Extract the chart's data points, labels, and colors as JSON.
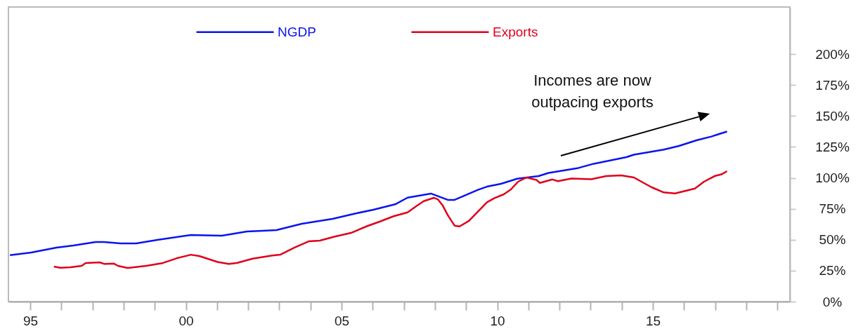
{
  "chart_data": {
    "type": "line",
    "x": [
      1994.35,
      1995.03,
      1995.84,
      1996.38,
      1997.1,
      1997.37,
      1997.91,
      1998.4,
      1999.08,
      2000.16,
      2001.15,
      2001.96,
      2002.46,
      2002.91,
      2003.72,
      2004.71,
      2005.48,
      2006.02,
      2006.74,
      2007.12,
      2007.87,
      2008.41,
      2008.63,
      2009.38,
      2009.67,
      2010.12,
      2010.64,
      2011.33,
      2011.65,
      2012.61,
      2013.1,
      2014.15,
      2014.39,
      2015.35,
      2015.84,
      2016.4,
      2016.88,
      2017.38
    ],
    "series": [
      {
        "name": "NGDP",
        "color": "#0a14f0",
        "values": [
          37.6,
          39.7,
          43.6,
          45.3,
          48.2,
          48.2,
          47,
          47,
          49.9,
          53.8,
          53.3,
          56.7,
          57.2,
          57.8,
          62.9,
          66.9,
          71.4,
          74.2,
          78.8,
          84,
          87.3,
          82.2,
          82.2,
          90.3,
          92.9,
          95.2,
          99.3,
          101.4,
          104,
          108,
          111.4,
          116.7,
          118.7,
          122.8,
          125.8,
          130.3,
          133.4,
          137.4
        ]
      },
      {
        "name": "Exports",
        "color": "#e0001b",
        "x": [
          1995.76,
          1995.97,
          1996.29,
          1996.65,
          1996.78,
          1997.23,
          1997.39,
          1997.68,
          1997.82,
          1998.13,
          1998.72,
          1999.26,
          1999.71,
          2000.16,
          2000.43,
          2001.02,
          2001.38,
          2001.65,
          2002.14,
          2002.77,
          2003.04,
          2003.49,
          2003.94,
          2004.3,
          2004.76,
          2005.3,
          2005.84,
          2006.22,
          2006.67,
          2007.12,
          2007.42,
          2007.64,
          2007.96,
          2008.09,
          2008.25,
          2008.41,
          2008.63,
          2008.79,
          2009.09,
          2009.38,
          2009.67,
          2009.9,
          2010.21,
          2010.44,
          2010.67,
          2010.94,
          2011.26,
          2011.37,
          2011.77,
          2011.95,
          2012.38,
          2013.02,
          2013.5,
          2013.98,
          2014.39,
          2014.63,
          2014.95,
          2015.35,
          2015.71,
          2016.35,
          2016.64,
          2017.0,
          2017.2,
          2017.38
        ],
        "values": [
          28.3,
          27.4,
          27.8,
          28.9,
          31.2,
          31.7,
          30.4,
          30.8,
          28.9,
          27.2,
          28.9,
          31.2,
          35.1,
          37.9,
          36.8,
          32,
          30.4,
          31.3,
          34.7,
          37.2,
          38,
          43.7,
          48.7,
          49.3,
          52.4,
          55.5,
          61.2,
          64.6,
          69,
          72.1,
          77.5,
          81.2,
          83.9,
          82.7,
          77.6,
          69.9,
          61.4,
          60.8,
          65.2,
          72.7,
          80.3,
          83.5,
          86.7,
          90.7,
          96.9,
          100.3,
          98.3,
          95.9,
          98.7,
          97.3,
          99.5,
          98.9,
          101.4,
          102,
          100.3,
          96.9,
          92.5,
          88.2,
          87.4,
          91.4,
          96.9,
          101.6,
          102.8,
          105.4
        ]
      }
    ],
    "xlim": [
      1994.3,
      2019.4
    ],
    "xticks": [
      {
        "value": 1995,
        "label": "95"
      },
      {
        "value": 1996,
        "label": null
      },
      {
        "value": 1997,
        "label": null
      },
      {
        "value": 1998,
        "label": null
      },
      {
        "value": 1999,
        "label": null
      },
      {
        "value": 2000,
        "label": "00"
      },
      {
        "value": 2001,
        "label": null
      },
      {
        "value": 2002,
        "label": null
      },
      {
        "value": 2003,
        "label": null
      },
      {
        "value": 2004,
        "label": null
      },
      {
        "value": 2005,
        "label": "05"
      },
      {
        "value": 2006,
        "label": null
      },
      {
        "value": 2007,
        "label": null
      },
      {
        "value": 2008,
        "label": null
      },
      {
        "value": 2009,
        "label": null
      },
      {
        "value": 2010,
        "label": "10"
      },
      {
        "value": 2011,
        "label": null
      },
      {
        "value": 2012,
        "label": null
      },
      {
        "value": 2013,
        "label": null
      },
      {
        "value": 2014,
        "label": null
      },
      {
        "value": 2015,
        "label": "15"
      },
      {
        "value": 2016,
        "label": null
      },
      {
        "value": 2017,
        "label": null
      },
      {
        "value": 2018,
        "label": null
      },
      {
        "value": 2019,
        "label": null
      }
    ],
    "ylim": [
      0,
      238
    ],
    "yticks": [
      {
        "value": 0,
        "label": "0%"
      },
      {
        "value": 25,
        "label": "25%"
      },
      {
        "value": 50,
        "label": "50%"
      },
      {
        "value": 75,
        "label": "75%"
      },
      {
        "value": 100,
        "label": "100%"
      },
      {
        "value": 125,
        "label": "125%"
      },
      {
        "value": 150,
        "label": "150%"
      },
      {
        "value": 175,
        "label": "175%"
      },
      {
        "value": 200,
        "label": "200%"
      }
    ],
    "annotations": [
      "Incomes are now\noutpacing exports"
    ],
    "legend": "top",
    "grid": false,
    "marker": "none",
    "line_style": "solid"
  }
}
